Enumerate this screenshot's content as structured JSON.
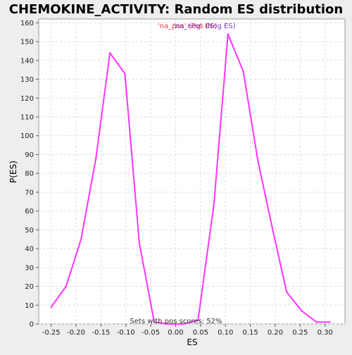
{
  "chart_data": {
    "type": "line",
    "title": "CHEMOKINE_ACTIVITY: Random ES distribution",
    "xlabel": "ES",
    "ylabel": "P(ES)",
    "xlim": [
      -0.275,
      0.34
    ],
    "ylim": [
      0,
      162
    ],
    "xticks": [
      -0.25,
      -0.2,
      -0.15,
      -0.1,
      -0.05,
      0.0,
      0.05,
      0.1,
      0.15,
      0.2,
      0.25,
      0.3
    ],
    "xtick_labels": [
      "-0.25",
      "-0.20",
      "-0.15",
      "-0.10",
      "-0.05",
      "0.00",
      "0.05",
      "0.10",
      "0.15",
      "0.20",
      "0.25",
      "0.30"
    ],
    "yticks": [
      0,
      10,
      20,
      30,
      40,
      50,
      60,
      70,
      80,
      90,
      100,
      110,
      120,
      130,
      140,
      150,
      160
    ],
    "grid": true,
    "legend": {
      "placement": "top-center",
      "entries": [
        "'na_pos' (Pos ES)",
        "'na_neg' (Neg ES)"
      ],
      "colors": [
        "#e83a3a",
        "#7a3cc9"
      ]
    },
    "annotation": "Sets with pos scores: 52%",
    "series": [
      {
        "color": "#ff33ff",
        "points": [
          [
            -0.25,
            9
          ],
          [
            -0.22,
            20
          ],
          [
            -0.19,
            45
          ],
          [
            -0.16,
            88
          ],
          [
            -0.132,
            144
          ],
          [
            -0.102,
            133
          ],
          [
            -0.073,
            43
          ],
          [
            -0.043,
            1
          ],
          [
            -0.015,
            0
          ],
          [
            0.015,
            0
          ],
          [
            0.045,
            2
          ],
          [
            0.077,
            64
          ],
          [
            0.105,
            154
          ],
          [
            0.136,
            134
          ],
          [
            0.165,
            87
          ],
          [
            0.195,
            50
          ],
          [
            0.223,
            17
          ],
          [
            0.253,
            7
          ],
          [
            0.283,
            1
          ],
          [
            0.31,
            1
          ]
        ]
      }
    ]
  }
}
